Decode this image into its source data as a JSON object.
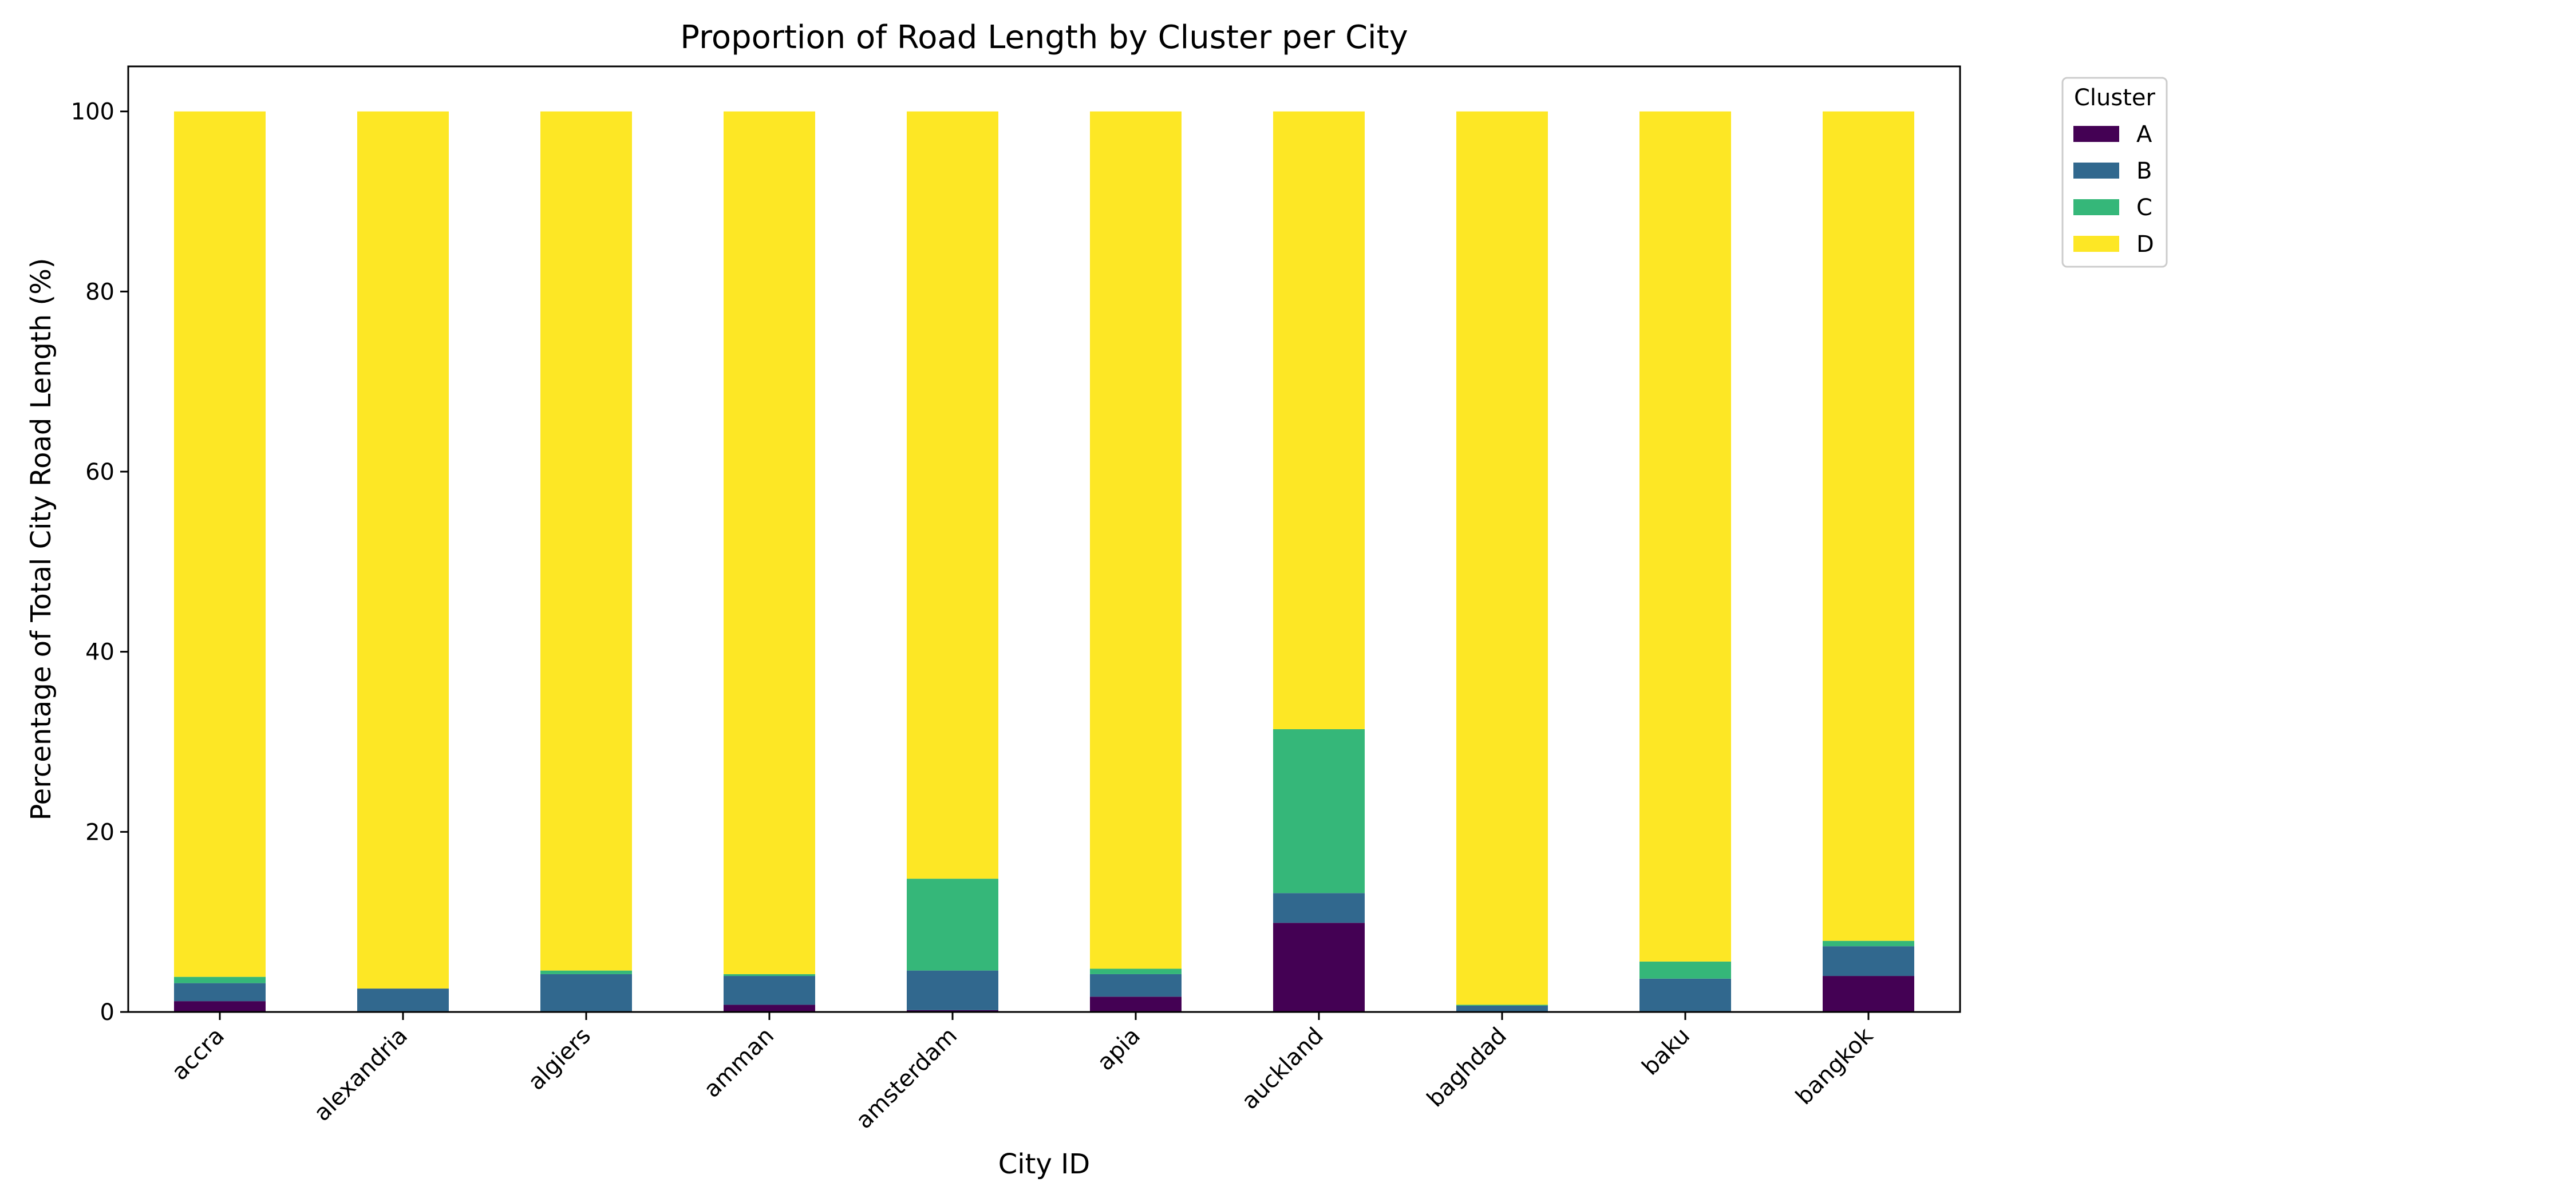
{
  "chart_data": {
    "type": "bar",
    "stacked": true,
    "title": "Proportion of Road Length by Cluster per City",
    "xlabel": "City ID",
    "ylabel": "Percentage of Total City Road Length (%)",
    "ylim": [
      0,
      105
    ],
    "yticks": [
      0,
      20,
      40,
      60,
      80,
      100
    ],
    "grid": false,
    "legend": {
      "title": "Cluster",
      "placement": "outside-top-right"
    },
    "categories": [
      "accra",
      "alexandria",
      "algiers",
      "amman",
      "amsterdam",
      "apia",
      "auckland",
      "baghdad",
      "baku",
      "bangkok"
    ],
    "series": [
      {
        "name": "A",
        "color": "#440154",
        "values": [
          1.2,
          0.1,
          0.1,
          0.8,
          0.2,
          1.7,
          9.9,
          0.1,
          0.1,
          4.0
        ]
      },
      {
        "name": "B",
        "color": "#31688e",
        "values": [
          2.0,
          2.5,
          4.1,
          3.2,
          4.4,
          2.5,
          3.3,
          0.6,
          3.6,
          3.3
        ]
      },
      {
        "name": "C",
        "color": "#35b779",
        "values": [
          0.7,
          0.0,
          0.4,
          0.2,
          10.2,
          0.6,
          18.2,
          0.1,
          1.9,
          0.6
        ]
      },
      {
        "name": "D",
        "color": "#fde725",
        "values": [
          96.1,
          97.4,
          95.4,
          95.8,
          85.2,
          95.2,
          68.6,
          99.2,
          94.4,
          92.1
        ]
      }
    ]
  }
}
